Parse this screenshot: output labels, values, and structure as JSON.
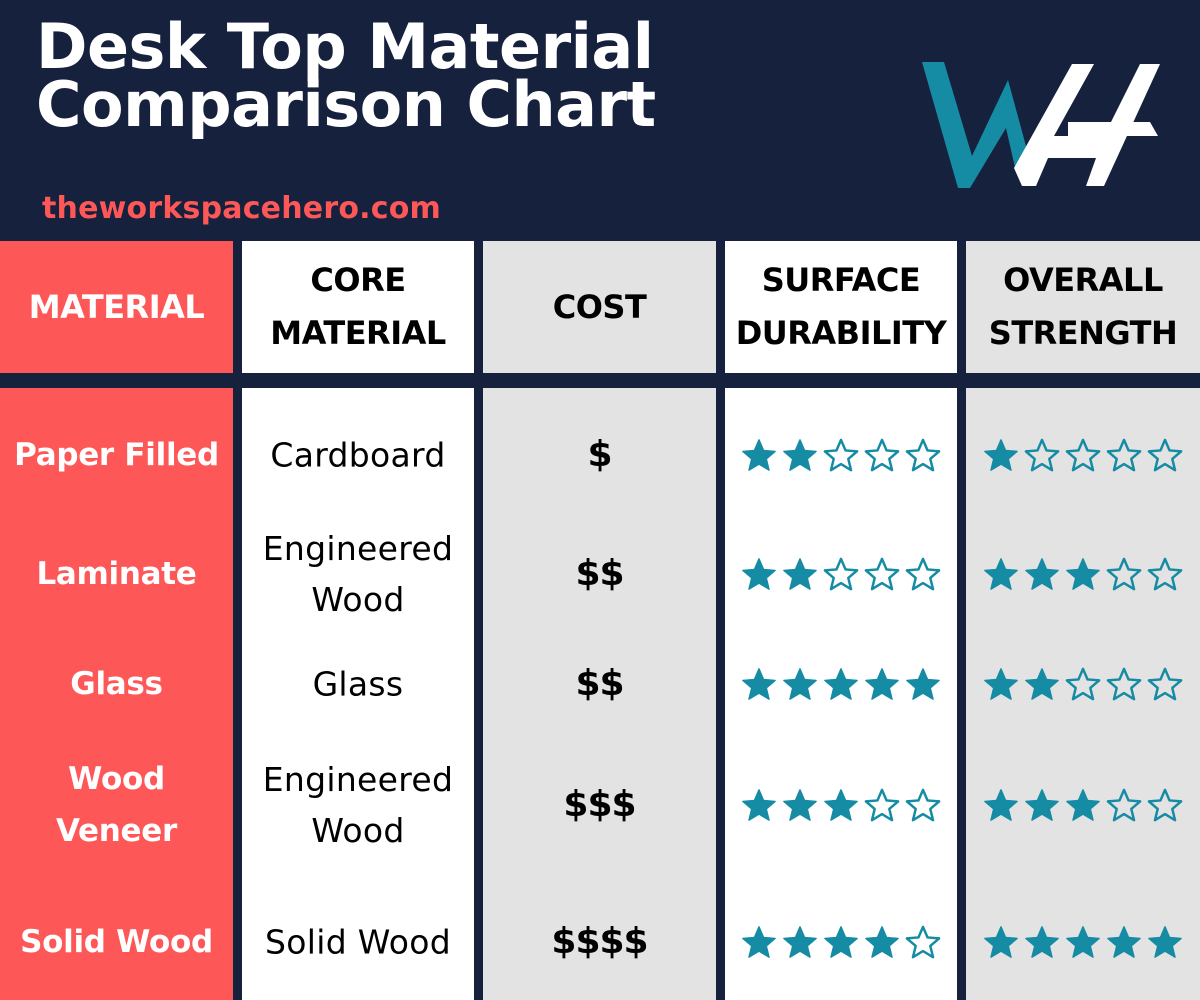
{
  "header": {
    "title_line1": "Desk Top Material",
    "title_line2": "Comparison Chart",
    "site": "theworkspacehero.com",
    "logo": "WH-logo"
  },
  "colors": {
    "navy": "#16213e",
    "coral": "#fd5757",
    "teal": "#168ba4",
    "gray": "#e3e3e3",
    "white": "#ffffff"
  },
  "columns": [
    {
      "label_line1": "MATERIAL",
      "label_line2": ""
    },
    {
      "label_line1": "CORE",
      "label_line2": "MATERIAL"
    },
    {
      "label_line1": "COST",
      "label_line2": ""
    },
    {
      "label_line1": "SURFACE",
      "label_line2": "DURABILITY"
    },
    {
      "label_line1": "OVERALL",
      "label_line2": "STRENGTH"
    }
  ],
  "rows": [
    {
      "material_line1": "Paper Filled",
      "material_line2": "",
      "core_line1": "Cardboard",
      "core_line2": "",
      "cost": "$",
      "durability": 2,
      "strength": 1
    },
    {
      "material_line1": "Laminate",
      "material_line2": "",
      "core_line1": "Engineered",
      "core_line2": "Wood",
      "cost": "$$",
      "durability": 2,
      "strength": 3
    },
    {
      "material_line1": "Glass",
      "material_line2": "",
      "core_line1": "Glass",
      "core_line2": "",
      "cost": "$$",
      "durability": 5,
      "strength": 2
    },
    {
      "material_line1": "Wood",
      "material_line2": "Veneer",
      "core_line1": "Engineered",
      "core_line2": "Wood",
      "cost": "$$$",
      "durability": 3,
      "strength": 3
    },
    {
      "material_line1": "Solid Wood",
      "material_line2": "",
      "core_line1": "Solid Wood",
      "core_line2": "",
      "cost": "$$$$",
      "durability": 4,
      "strength": 5
    }
  ],
  "chart_data": {
    "type": "table",
    "title": "Desk Top Material Comparison Chart",
    "subtitle": "theworkspacehero.com",
    "columns": [
      "MATERIAL",
      "CORE MATERIAL",
      "COST",
      "SURFACE DURABILITY",
      "OVERALL STRENGTH"
    ],
    "rows": [
      [
        "Paper Filled",
        "Cardboard",
        "$",
        2,
        1
      ],
      [
        "Laminate",
        "Engineered Wood",
        "$$",
        2,
        3
      ],
      [
        "Glass",
        "Glass",
        "$$",
        5,
        2
      ],
      [
        "Wood Veneer",
        "Engineered Wood",
        "$$$",
        3,
        3
      ],
      [
        "Solid Wood",
        "Solid Wood",
        "$$$$",
        4,
        5
      ]
    ],
    "rating_scale": {
      "max": 5,
      "icon": "star"
    }
  }
}
